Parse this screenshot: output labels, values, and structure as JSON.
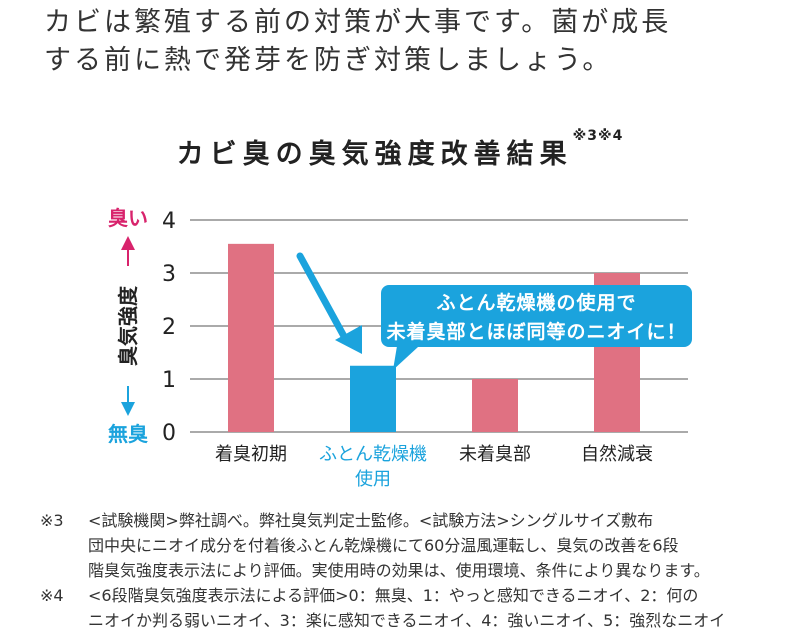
{
  "intro": {
    "line1": "カビは繁殖する前の対策が大事です。菌が成長",
    "line2": "する前に熱で発芽を防ぎ対策しましょう。"
  },
  "chart_data": {
    "type": "bar",
    "title": "カビ臭の臭気強度改善結果",
    "title_note": "※3※4",
    "categories": [
      "着臭初期",
      "ふとん乾燥機\n使用",
      "未着臭部",
      "自然減衰"
    ],
    "values": [
      3.55,
      1.25,
      1.0,
      3.0
    ],
    "highlight_index": 1,
    "ylabel": "臭気強度",
    "ylabel_top": "臭い",
    "ylabel_bottom": "無臭",
    "yticks": [
      "0",
      "1",
      "2",
      "3",
      "4"
    ],
    "ylim": [
      0,
      4
    ],
    "grid": true,
    "colors": {
      "bar": "#e07182",
      "highlight": "#1ba3dd",
      "top_label": "#d8236c",
      "bottom_label": "#1ba3dd",
      "grid": "#555555"
    }
  },
  "callout": {
    "line1": "ふとん乾燥機の使用で",
    "line2": "未着臭部とほぼ同等のニオイに！"
  },
  "footnotes": [
    {
      "mark": "※3",
      "lines": [
        "<試験機関>弊社調べ。弊社臭気判定士監修。<試験方法>シングルサイズ敷布",
        "団中央にニオイ成分を付着後ふとん乾燥機にて60分温風運転し、臭気の改善を6段",
        "階臭気強度表示法により評価。実使用時の効果は、使用環境、条件により異なります。"
      ]
    },
    {
      "mark": "※4",
      "lines": [
        "<6段階臭気強度表示法による評価>0：無臭、1：やっと感知できるニオイ、2：何の",
        "ニオイか判る弱いニオイ、3：楽に感知できるニオイ、4：強いニオイ、5：強烈なニオイ"
      ]
    }
  ]
}
